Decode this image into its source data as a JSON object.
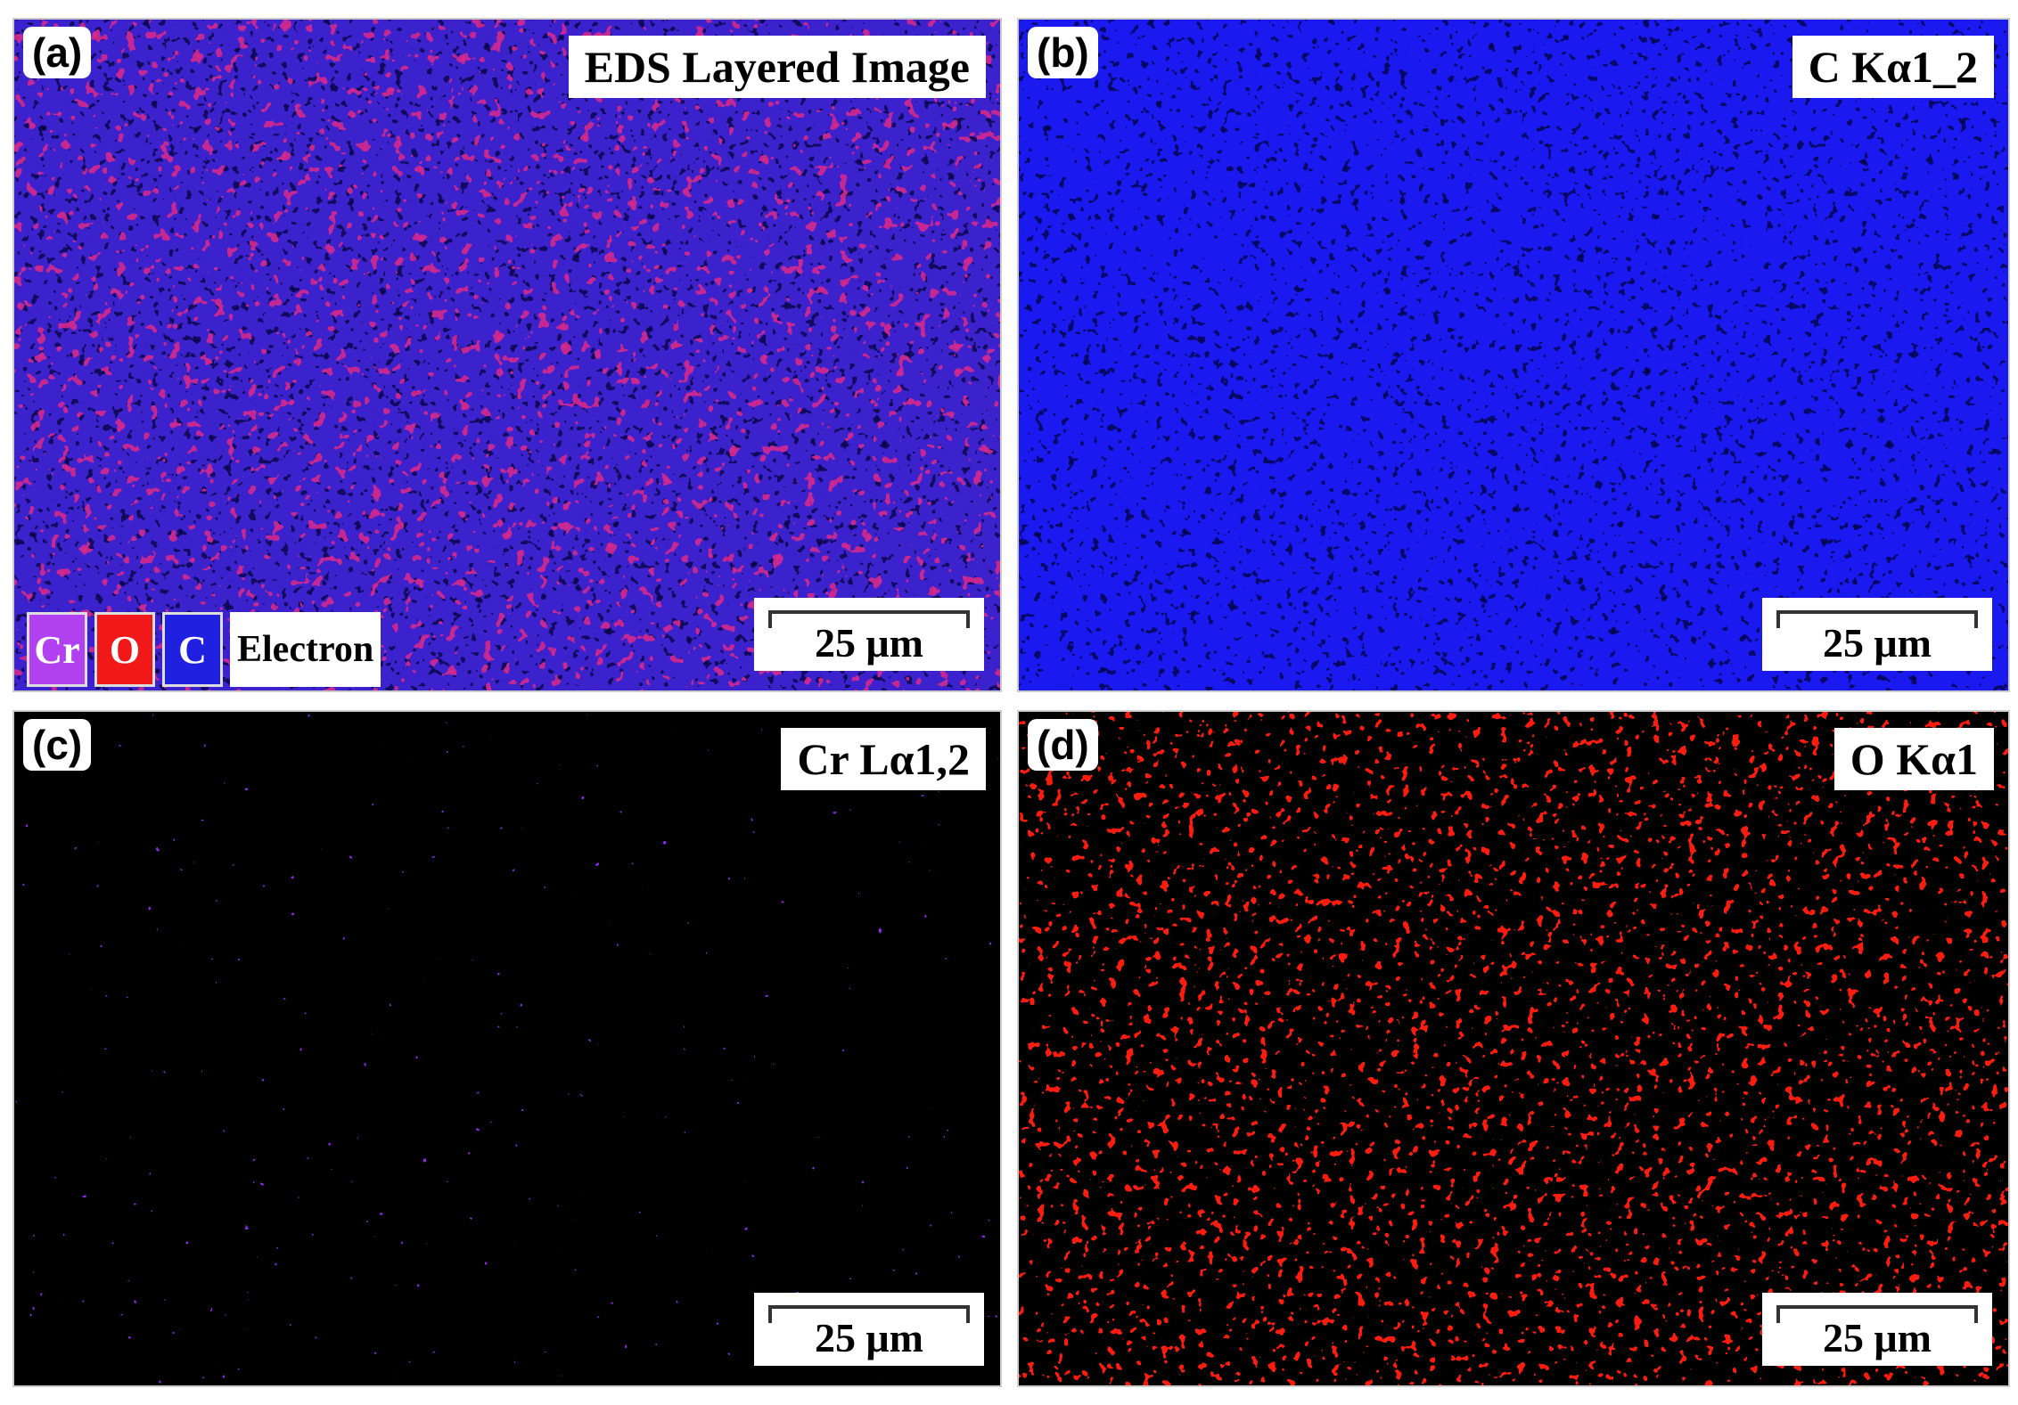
{
  "panels": [
    {
      "label": "(a)",
      "title": "EDS Layered Image",
      "scale_bar": "25 μm",
      "legend": [
        "Cr",
        "O",
        "C",
        "Electron"
      ]
    },
    {
      "label": "(b)",
      "title": "C Kα1_2",
      "scale_bar": "25 μm"
    },
    {
      "label": "(c)",
      "title": "Cr Lα1,2",
      "scale_bar": "25 μm"
    },
    {
      "label": "(d)",
      "title": "O Kα1",
      "scale_bar": "25 μm"
    }
  ]
}
